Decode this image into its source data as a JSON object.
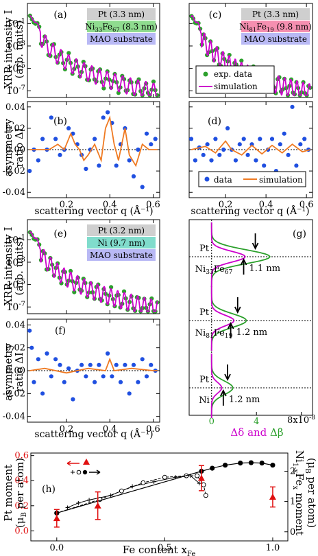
{
  "figure": {
    "panel_labels": [
      "(a)",
      "(b)",
      "(c)",
      "(d)",
      "(e)",
      "(f)",
      "(g)",
      "(h)"
    ],
    "axes_text": {
      "xrr_ylabel_1": "XRR intensity I",
      "xrr_ylabel_2": "(arb. units)",
      "asym_ylabel_1": "asymmetry",
      "asym_ylabel_2": "ratio ΔI",
      "q_xlabel": "scattering vector q (Å⁻¹)",
      "h_xlabel": "Fe content x",
      "h_xlabel_sub": "Fe",
      "h_ylabel_left_1": "Pt moment",
      "h_ylabel_left_2": "(μ",
      "h_ylabel_left_2b": "B",
      "h_ylabel_left_2c": " per atom)",
      "h_ylabel_right_1": "Ni",
      "h_ylabel_right_1b": "1-x",
      "h_ylabel_right_1c": "Fe",
      "h_ylabel_right_1d": "x",
      "h_ylabel_right_1e": " moment",
      "h_ylabel_right_2": "(μ",
      "h_ylabel_right_2b": "B",
      "h_ylabel_right_2c": " per atom)",
      "g_x_label_delta": "Δδ",
      "g_x_label_and": " and ",
      "g_x_label_beta": "Δβ",
      "g_x_unit": "8x10",
      "g_x_unit_exp": "-8"
    },
    "legends": {
      "exp_data": "exp. data",
      "simulation": "simulation",
      "data": "data"
    },
    "stack_labels": {
      "a_pt": "Pt (3.3 nm)",
      "a_nife_1": "Ni",
      "a_nife_sub1": "33",
      "a_nife_2": "Fe",
      "a_nife_sub2": "67",
      "a_nife_3": " (8.3 nm)",
      "a_sub": "MAO substrate",
      "c_pt": "Pt (3.3 nm)",
      "c_nife_1": "Ni",
      "c_nife_sub1": "81",
      "c_nife_2": "Fe",
      "c_nife_sub2": "19",
      "c_nife_3": " (9.8 nm)",
      "c_sub": "MAO substrate",
      "e_pt": "Pt (3.2 nm)",
      "e_ni": "Ni (9.7 nm)",
      "e_sub": "MAO substrate"
    },
    "g_labels": {
      "pt": "Pt",
      "nife1": "Ni",
      "nife1_s1": "33",
      "nife1_fe": "Fe",
      "nife1_s2": "67",
      "nife2": "Ni",
      "nife2_s1": "81",
      "nife2_fe": "Fe",
      "nife2_s2": "19",
      "ni": "Ni",
      "d1": "1.1 nm",
      "d2": "1.2 nm",
      "d3": "1.2 nm"
    },
    "colors": {
      "data_green": "#2ca02c",
      "sim_magenta": "#cc00cc",
      "asym_blue": "#1f4fe0",
      "asym_orange": "#ef7a22",
      "h_red": "#e01010",
      "pt_gray": "#cfcfcf",
      "nife_green": "#8fdc8f",
      "nife_pink": "#f58fb0",
      "ni_teal": "#80dccc",
      "mao_blue": "#b9b9f5"
    }
  },
  "chart_data": [
    {
      "panel": "(a)",
      "type": "line",
      "xlabel": "",
      "ylabel": "XRR intensity I (arb. units)",
      "xlim": [
        0.02,
        0.63
      ],
      "ylim_log10": [
        -7.6,
        0.8
      ],
      "yticks": [
        "10^-1",
        "10^-3",
        "10^-5",
        "10^-7"
      ],
      "xticks": [
        0.2,
        0.4,
        0.6
      ],
      "log_y": true,
      "envelope": {
        "q0": 0.05,
        "amp0": 0.5,
        "decay_exp": 3.6,
        "period": 0.0356,
        "depth": 1.5
      },
      "series": [
        {
          "name": "exp. data",
          "marker": "circle"
        },
        {
          "name": "simulation",
          "marker": "line"
        }
      ]
    },
    {
      "panel": "(b)",
      "type": "scatter",
      "xlabel": "scattering vector q (Å⁻¹)",
      "ylabel": "asymmetry ratio ΔI",
      "xlim": [
        0.02,
        0.63
      ],
      "ylim": [
        -0.045,
        0.045
      ],
      "yticks": [
        0.04,
        0.02,
        0.0,
        -0.02,
        -0.04
      ],
      "xticks": [
        0.2,
        0.4,
        0.6
      ],
      "data_points": [
        [
          0.03,
          -0.02
        ],
        [
          0.05,
          0.0
        ],
        [
          0.07,
          -0.01
        ],
        [
          0.09,
          0.01
        ],
        [
          0.11,
          0.0
        ],
        [
          0.13,
          0.03
        ],
        [
          0.15,
          0.01
        ],
        [
          0.17,
          -0.005
        ],
        [
          0.19,
          0.0
        ],
        [
          0.21,
          0.02
        ],
        [
          0.23,
          0.015
        ],
        [
          0.25,
          0.005
        ],
        [
          0.27,
          -0.005
        ],
        [
          0.29,
          -0.018
        ],
        [
          0.31,
          0.0
        ],
        [
          0.33,
          0.01
        ],
        [
          0.35,
          -0.015
        ],
        [
          0.37,
          0.03
        ],
        [
          0.39,
          0.035
        ],
        [
          0.41,
          0.025
        ],
        [
          0.43,
          -0.015
        ],
        [
          0.45,
          0.005
        ],
        [
          0.47,
          0.02
        ],
        [
          0.49,
          -0.01
        ],
        [
          0.51,
          -0.025
        ],
        [
          0.53,
          0.0
        ],
        [
          0.55,
          -0.035
        ],
        [
          0.57,
          0.015
        ],
        [
          0.59,
          0.005
        ],
        [
          0.61,
          0.01
        ]
      ],
      "simulation": [
        [
          0.03,
          0.0
        ],
        [
          0.12,
          0.0
        ],
        [
          0.16,
          0.005
        ],
        [
          0.19,
          0.0
        ],
        [
          0.22,
          0.015
        ],
        [
          0.24,
          0.005
        ],
        [
          0.26,
          0.0
        ],
        [
          0.28,
          -0.01
        ],
        [
          0.3,
          -0.005
        ],
        [
          0.33,
          0.005
        ],
        [
          0.36,
          -0.01
        ],
        [
          0.38,
          0.02
        ],
        [
          0.4,
          0.03
        ],
        [
          0.42,
          0.005
        ],
        [
          0.44,
          -0.01
        ],
        [
          0.47,
          0.02
        ],
        [
          0.49,
          -0.005
        ],
        [
          0.52,
          -0.015
        ],
        [
          0.55,
          0.005
        ],
        [
          0.58,
          0.0
        ],
        [
          0.62,
          0.0
        ]
      ]
    },
    {
      "panel": "(c)",
      "type": "line",
      "xlabel": "",
      "ylabel": "",
      "xlim": [
        0.02,
        0.63
      ],
      "ylim_log10": [
        -7.6,
        0.8
      ],
      "xticks": [
        0.2,
        0.4,
        0.6
      ],
      "log_y": true,
      "envelope": {
        "q0": 0.05,
        "amp0": 0.5,
        "decay_exp": 3.6,
        "period": 0.0305,
        "depth": 1.6
      },
      "series": [
        {
          "name": "exp. data",
          "marker": "circle"
        },
        {
          "name": "simulation",
          "marker": "line"
        }
      ]
    },
    {
      "panel": "(d)",
      "type": "scatter",
      "xlabel": "scattering vector q (Å⁻¹)",
      "ylabel": "",
      "xlim": [
        0.02,
        0.63
      ],
      "ylim": [
        -0.045,
        0.045
      ],
      "xticks": [
        0.2,
        0.4,
        0.6
      ],
      "data_points": [
        [
          0.03,
          0.01
        ],
        [
          0.05,
          -0.01
        ],
        [
          0.07,
          0.002
        ],
        [
          0.09,
          -0.005
        ],
        [
          0.11,
          0.005
        ],
        [
          0.13,
          -0.01
        ],
        [
          0.15,
          0.01
        ],
        [
          0.17,
          -0.005
        ],
        [
          0.19,
          0.0
        ],
        [
          0.21,
          0.02
        ],
        [
          0.23,
          0.0
        ],
        [
          0.25,
          -0.01
        ],
        [
          0.27,
          0.005
        ],
        [
          0.29,
          0.01
        ],
        [
          0.31,
          -0.005
        ],
        [
          0.33,
          0.005
        ],
        [
          0.35,
          -0.01
        ],
        [
          0.37,
          0.01
        ],
        [
          0.39,
          -0.015
        ],
        [
          0.41,
          0.0
        ],
        [
          0.43,
          0.01
        ],
        [
          0.45,
          -0.02
        ],
        [
          0.47,
          0.005
        ],
        [
          0.49,
          0.015
        ],
        [
          0.51,
          -0.005
        ],
        [
          0.53,
          0.04
        ],
        [
          0.55,
          -0.015
        ],
        [
          0.57,
          0.005
        ],
        [
          0.59,
          0.01
        ],
        [
          0.61,
          0.0
        ]
      ],
      "simulation": [
        [
          0.03,
          0.0
        ],
        [
          0.1,
          0.003
        ],
        [
          0.15,
          -0.003
        ],
        [
          0.2,
          0.008
        ],
        [
          0.23,
          0.0
        ],
        [
          0.28,
          -0.005
        ],
        [
          0.33,
          0.004
        ],
        [
          0.38,
          -0.004
        ],
        [
          0.43,
          0.004
        ],
        [
          0.48,
          -0.003
        ],
        [
          0.53,
          0.005
        ],
        [
          0.58,
          -0.002
        ],
        [
          0.62,
          0.0
        ]
      ],
      "series": [
        {
          "name": "data",
          "marker": "circle"
        },
        {
          "name": "simulation",
          "marker": "line"
        }
      ]
    },
    {
      "panel": "(e)",
      "type": "line",
      "xlabel": "",
      "ylabel": "XRR intensity I (arb. units)",
      "xlim": [
        0.02,
        0.63
      ],
      "ylim_log10": [
        -7.6,
        0.8
      ],
      "yticks": [
        "10^-1",
        "10^-3",
        "10^-5",
        "10^-7"
      ],
      "xticks": [
        0.2,
        0.4,
        0.6
      ],
      "log_y": true,
      "envelope": {
        "q0": 0.05,
        "amp0": 0.5,
        "decay_exp": 3.6,
        "period": 0.0309,
        "depth": 1.5
      }
    },
    {
      "panel": "(f)",
      "type": "scatter",
      "xlabel": "scattering vector q (Å⁻¹)",
      "ylabel": "asymmetry ratio ΔI",
      "xlim": [
        0.02,
        0.63
      ],
      "ylim": [
        -0.045,
        0.045
      ],
      "yticks": [
        0.04,
        0.02,
        0.0,
        -0.02,
        -0.04
      ],
      "xticks": [
        0.2,
        0.4,
        0.6
      ],
      "data_points": [
        [
          0.03,
          0.035
        ],
        [
          0.04,
          0.02
        ],
        [
          0.05,
          -0.01
        ],
        [
          0.07,
          0.01
        ],
        [
          0.09,
          -0.02
        ],
        [
          0.11,
          0.015
        ],
        [
          0.13,
          -0.005
        ],
        [
          0.15,
          0.01
        ],
        [
          0.17,
          0.005
        ],
        [
          0.19,
          -0.01
        ],
        [
          0.21,
          0.002
        ],
        [
          0.23,
          -0.025
        ],
        [
          0.25,
          0.0
        ],
        [
          0.27,
          0.005
        ],
        [
          0.29,
          -0.005
        ],
        [
          0.31,
          0.005
        ],
        [
          0.33,
          -0.01
        ],
        [
          0.35,
          0.005
        ],
        [
          0.37,
          -0.005
        ],
        [
          0.39,
          0.015
        ],
        [
          0.41,
          -0.005
        ],
        [
          0.43,
          0.005
        ],
        [
          0.45,
          -0.01
        ],
        [
          0.47,
          0.005
        ],
        [
          0.49,
          -0.02
        ],
        [
          0.51,
          0.005
        ],
        [
          0.53,
          -0.01
        ],
        [
          0.55,
          0.01
        ],
        [
          0.57,
          -0.005
        ],
        [
          0.59,
          0.005
        ],
        [
          0.61,
          0.0
        ]
      ],
      "simulation": [
        [
          0.03,
          0.0
        ],
        [
          0.1,
          0.002
        ],
        [
          0.2,
          -0.002
        ],
        [
          0.3,
          0.002
        ],
        [
          0.38,
          0.0
        ],
        [
          0.4,
          0.01
        ],
        [
          0.42,
          0.0
        ],
        [
          0.5,
          0.002
        ],
        [
          0.6,
          0.0
        ],
        [
          0.62,
          0.0
        ]
      ]
    },
    {
      "panel": "(g)",
      "type": "line",
      "xlabel": "Δδ and Δβ",
      "xlim": [
        -2,
        9
      ],
      "xticks": [
        0,
        4,
        8
      ],
      "xunit": "8x10^-8",
      "profiles": [
        {
          "layer": "Ni33Fe67",
          "interface_width": "1.1 nm",
          "beta_peak": 5.2,
          "delta_peak": 3.0
        },
        {
          "layer": "Ni81Fe19",
          "interface_width": "1.2 nm",
          "beta_peak": 3.1,
          "delta_peak": 2.0
        },
        {
          "layer": "Ni",
          "interface_width": "1.2 nm",
          "beta_peak": 1.9,
          "delta_peak": 0.9
        }
      ]
    },
    {
      "panel": "(h)",
      "type": "scatter",
      "xlabel": "Fe content xFe",
      "ylabel_left": "Pt moment (μB per atom)",
      "ylabel_right": "Ni1-xFex moment (μB per atom)",
      "xlim": [
        -0.12,
        1.07
      ],
      "ylim_left": [
        -0.08,
        0.62
      ],
      "yticks_left": [
        0.0,
        0.2,
        0.4,
        0.6
      ],
      "yticks_right": [
        0,
        1,
        2
      ],
      "xticks": [
        0.0,
        0.5,
        1.0
      ],
      "pt_moment": [
        {
          "x": 0.0,
          "y": 0.1,
          "err": 0.07
        },
        {
          "x": 0.19,
          "y": 0.2,
          "err": 0.11
        },
        {
          "x": 0.67,
          "y": 0.42,
          "err": 0.1
        },
        {
          "x": 1.0,
          "y": 0.27,
          "err": 0.08
        }
      ],
      "nife_moment_filled": [
        [
          0.0,
          0.62
        ],
        [
          0.67,
          2.0
        ],
        [
          0.72,
          2.1
        ],
        [
          0.78,
          2.2
        ],
        [
          0.85,
          2.27
        ],
        [
          0.9,
          2.28
        ],
        [
          0.95,
          2.27
        ],
        [
          1.0,
          2.2
        ]
      ],
      "nife_moment_open": [
        [
          0.0,
          0.62
        ],
        [
          0.2,
          1.07
        ],
        [
          0.3,
          1.35
        ],
        [
          0.4,
          1.62
        ],
        [
          0.5,
          1.8
        ],
        [
          0.6,
          1.85
        ],
        [
          0.65,
          1.85
        ],
        [
          0.68,
          1.55
        ],
        [
          0.69,
          1.2
        ]
      ],
      "nife_moment_plus": [
        [
          0.05,
          0.8
        ],
        [
          0.1,
          0.95
        ],
        [
          0.15,
          1.05
        ],
        [
          0.25,
          1.2
        ],
        [
          0.35,
          1.5
        ],
        [
          0.45,
          1.65
        ],
        [
          0.55,
          1.8
        ],
        [
          0.62,
          1.85
        ],
        [
          0.66,
          1.6
        ]
      ]
    }
  ]
}
